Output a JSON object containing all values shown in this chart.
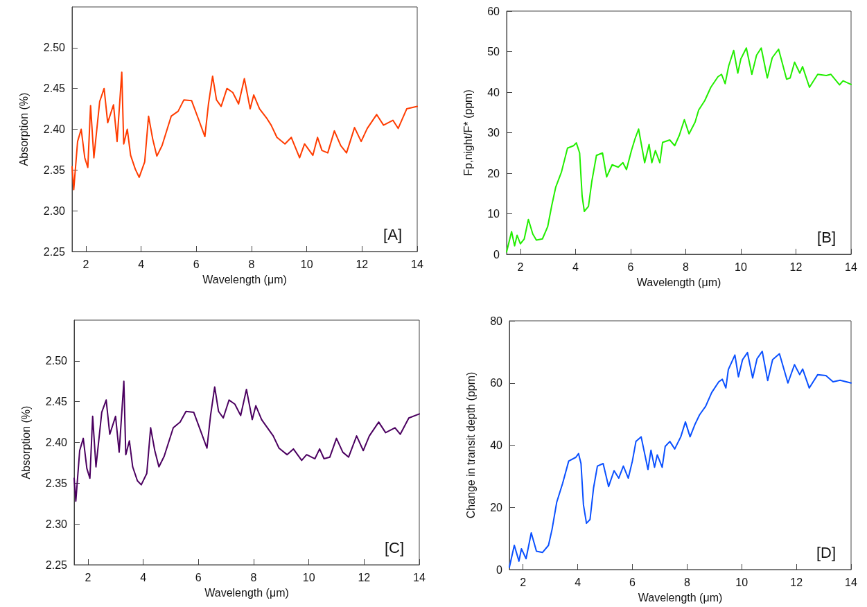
{
  "chart_data": [
    {
      "type": "line",
      "xlabel": "Wavelength (μm)",
      "ylabel": "Absorption (%)",
      "annotations": [
        "[A]"
      ],
      "grid": false,
      "marker": "none",
      "xlim": [
        1.5,
        14
      ],
      "xticks": [
        2,
        4,
        6,
        8,
        10,
        12,
        14
      ],
      "ylim": [
        2.25,
        2.55
      ],
      "yticks": [
        {
          "value": 2.25,
          "label": "2.25"
        },
        {
          "value": 2.3,
          "label": "2.30"
        },
        {
          "value": 2.35,
          "label": "2.35"
        },
        {
          "value": 2.4,
          "label": "2.40"
        },
        {
          "value": 2.45,
          "label": "2.45"
        },
        {
          "value": 2.5,
          "label": "2.50"
        }
      ],
      "x": [
        1.5,
        1.56,
        1.7,
        1.83,
        1.96,
        2.07,
        2.17,
        2.29,
        2.5,
        2.66,
        2.79,
        3.0,
        3.13,
        3.3,
        3.37,
        3.5,
        3.62,
        3.79,
        3.93,
        4.13,
        4.27,
        4.42,
        4.57,
        4.76,
        5.09,
        5.34,
        5.55,
        5.83,
        6.06,
        6.31,
        6.44,
        6.59,
        6.73,
        6.9,
        7.11,
        7.32,
        7.53,
        7.74,
        7.95,
        8.08,
        8.29,
        8.54,
        8.71,
        8.92,
        9.21,
        9.44,
        9.74,
        9.92,
        10.22,
        10.39,
        10.55,
        10.76,
        11.0,
        11.23,
        11.44,
        11.73,
        11.97,
        12.19,
        12.53,
        12.78,
        13.12,
        13.31,
        13.62,
        14.0
      ],
      "series": [
        {
          "color": "#ff3c00",
          "values": [
            2.354,
            2.326,
            2.385,
            2.4,
            2.365,
            2.353,
            2.429,
            2.365,
            2.434,
            2.45,
            2.408,
            2.43,
            2.385,
            2.47,
            2.382,
            2.4,
            2.368,
            2.351,
            2.341,
            2.36,
            2.416,
            2.388,
            2.367,
            2.38,
            2.416,
            2.422,
            2.436,
            2.435,
            2.414,
            2.391,
            2.431,
            2.465,
            2.436,
            2.428,
            2.45,
            2.445,
            2.431,
            2.462,
            2.425,
            2.442,
            2.425,
            2.414,
            2.405,
            2.39,
            2.382,
            2.39,
            2.365,
            2.382,
            2.368,
            2.39,
            2.374,
            2.371,
            2.398,
            2.38,
            2.371,
            2.402,
            2.385,
            2.401,
            2.418,
            2.405,
            2.411,
            2.401,
            2.425,
            2.428
          ]
        }
      ]
    },
    {
      "type": "line",
      "xlabel": "Wavelength (μm)",
      "ylabel": "Fp,night/F* (ppm)",
      "annotations": [
        "[B]"
      ],
      "grid": false,
      "marker": "none",
      "xlim": [
        1.5,
        14
      ],
      "xticks": [
        2,
        4,
        6,
        8,
        10,
        12,
        14
      ],
      "ylim": [
        0,
        60
      ],
      "yticks": [
        0,
        10,
        20,
        30,
        40,
        50,
        60
      ],
      "x": [
        1.5,
        1.68,
        1.79,
        1.88,
        2.0,
        2.14,
        2.29,
        2.45,
        2.58,
        2.8,
        2.99,
        3.14,
        3.28,
        3.49,
        3.71,
        3.93,
        4.03,
        4.15,
        4.24,
        4.32,
        4.47,
        4.59,
        4.76,
        4.98,
        5.13,
        5.33,
        5.55,
        5.72,
        5.85,
        6.03,
        6.16,
        6.29,
        6.51,
        6.67,
        6.77,
        6.9,
        7.06,
        7.16,
        7.42,
        7.6,
        7.77,
        7.95,
        8.12,
        8.34,
        8.47,
        8.69,
        8.91,
        9.17,
        9.3,
        9.43,
        9.56,
        9.74,
        9.89,
        10.0,
        10.2,
        10.4,
        10.57,
        10.74,
        10.96,
        11.14,
        11.37,
        11.66,
        11.79,
        11.95,
        12.14,
        12.24,
        12.49,
        12.79,
        13.1,
        13.27,
        13.58,
        13.71,
        14.0
      ],
      "series": [
        {
          "color": "#22ee00",
          "values": [
            0.6,
            5.6,
            2.1,
            4.7,
            2.6,
            3.8,
            8.6,
            5.0,
            3.5,
            3.8,
            6.8,
            12.1,
            16.5,
            20.3,
            26.2,
            26.8,
            27.5,
            25.0,
            14.4,
            10.6,
            11.8,
            17.9,
            24.4,
            25.0,
            19.1,
            22.1,
            21.5,
            22.6,
            20.9,
            25.6,
            28.5,
            30.9,
            22.6,
            27.1,
            22.6,
            25.6,
            22.6,
            27.6,
            28.2,
            26.8,
            29.4,
            33.2,
            29.7,
            32.6,
            35.6,
            37.9,
            41.2,
            43.8,
            44.4,
            42.1,
            46.5,
            50.3,
            44.7,
            48.2,
            50.9,
            44.4,
            49.1,
            50.9,
            43.5,
            48.5,
            50.6,
            43.2,
            43.5,
            47.4,
            44.7,
            46.3,
            41.2,
            44.4,
            44.1,
            44.4,
            41.8,
            42.8,
            41.9
          ]
        }
      ]
    },
    {
      "type": "line",
      "xlabel": "Wavelength (μm)",
      "ylabel": "Absorption (%)",
      "annotations": [
        "[C]"
      ],
      "grid": false,
      "marker": "none",
      "xlim": [
        1.5,
        14
      ],
      "xticks": [
        2,
        4,
        6,
        8,
        10,
        12,
        14
      ],
      "ylim": [
        2.25,
        2.55
      ],
      "yticks": [
        {
          "value": 2.25,
          "label": "2.25"
        },
        {
          "value": 2.3,
          "label": "2.30"
        },
        {
          "value": 2.35,
          "label": "2.35"
        },
        {
          "value": 2.4,
          "label": "2.40"
        },
        {
          "value": 2.45,
          "label": "2.45"
        },
        {
          "value": 2.5,
          "label": "2.50"
        }
      ],
      "x": [
        1.5,
        1.56,
        1.7,
        1.83,
        1.96,
        2.07,
        2.17,
        2.29,
        2.5,
        2.66,
        2.79,
        3.0,
        3.13,
        3.3,
        3.37,
        3.5,
        3.62,
        3.79,
        3.93,
        4.13,
        4.27,
        4.42,
        4.57,
        4.76,
        5.09,
        5.34,
        5.55,
        5.83,
        6.06,
        6.31,
        6.44,
        6.59,
        6.73,
        6.9,
        7.11,
        7.32,
        7.53,
        7.74,
        7.95,
        8.08,
        8.29,
        8.54,
        8.71,
        8.92,
        9.21,
        9.44,
        9.74,
        9.92,
        10.22,
        10.39,
        10.55,
        10.76,
        11.0,
        11.23,
        11.44,
        11.73,
        11.97,
        12.19,
        12.53,
        12.78,
        13.12,
        13.31,
        13.62,
        14.0
      ],
      "series": [
        {
          "color": "#4b0060",
          "values": [
            2.356,
            2.328,
            2.39,
            2.405,
            2.368,
            2.356,
            2.432,
            2.37,
            2.437,
            2.452,
            2.41,
            2.432,
            2.388,
            2.475,
            2.385,
            2.402,
            2.37,
            2.353,
            2.348,
            2.362,
            2.418,
            2.39,
            2.37,
            2.383,
            2.418,
            2.425,
            2.438,
            2.437,
            2.416,
            2.393,
            2.433,
            2.468,
            2.438,
            2.43,
            2.452,
            2.447,
            2.433,
            2.465,
            2.428,
            2.445,
            2.428,
            2.416,
            2.408,
            2.393,
            2.385,
            2.392,
            2.378,
            2.385,
            2.38,
            2.392,
            2.38,
            2.382,
            2.405,
            2.388,
            2.382,
            2.408,
            2.39,
            2.408,
            2.425,
            2.412,
            2.418,
            2.41,
            2.43,
            2.435
          ]
        }
      ]
    },
    {
      "type": "line",
      "xlabel": "Wavelength (μm)",
      "ylabel": "Change in transit depth (ppm)",
      "annotations": [
        "[D]"
      ],
      "grid": false,
      "marker": "none",
      "xlim": [
        1.5,
        14
      ],
      "xticks": [
        2,
        4,
        6,
        8,
        10,
        12,
        14
      ],
      "ylim": [
        0,
        80
      ],
      "yticks": [
        0,
        20,
        40,
        60,
        80
      ],
      "x": [
        1.5,
        1.68,
        1.85,
        1.94,
        2.11,
        2.3,
        2.49,
        2.71,
        2.93,
        3.06,
        3.23,
        3.45,
        3.67,
        3.93,
        4.03,
        4.12,
        4.21,
        4.32,
        4.45,
        4.58,
        4.72,
        4.93,
        5.13,
        5.33,
        5.5,
        5.67,
        5.85,
        6.0,
        6.13,
        6.32,
        6.57,
        6.68,
        6.81,
        6.91,
        7.09,
        7.2,
        7.37,
        7.55,
        7.77,
        7.94,
        8.11,
        8.29,
        8.46,
        8.68,
        8.9,
        9.16,
        9.29,
        9.42,
        9.51,
        9.75,
        9.88,
        10.03,
        10.21,
        10.4,
        10.56,
        10.75,
        10.95,
        11.13,
        11.38,
        11.69,
        11.93,
        12.12,
        12.23,
        12.47,
        12.78,
        13.08,
        13.34,
        13.6,
        14.0
      ],
      "series": [
        {
          "color": "#0a50ff",
          "values": [
            0.8,
            7.8,
            2.7,
            6.7,
            3.5,
            11.8,
            5.9,
            5.5,
            7.8,
            12.9,
            21.6,
            27.8,
            34.9,
            36.1,
            37.3,
            34.1,
            20.8,
            14.9,
            16.1,
            26.3,
            33.3,
            34.1,
            26.7,
            31.8,
            29.4,
            33.3,
            29.4,
            34.9,
            41.2,
            42.7,
            32.2,
            38.4,
            32.9,
            36.9,
            32.9,
            39.6,
            41.2,
            38.8,
            42.7,
            47.5,
            42.7,
            46.7,
            49.8,
            52.5,
            56.9,
            60.4,
            61.2,
            58.4,
            64.3,
            69.0,
            62.0,
            67.5,
            69.8,
            61.6,
            67.8,
            70.2,
            60.8,
            67.5,
            69.4,
            60.0,
            65.9,
            62.7,
            64.5,
            58.4,
            62.7,
            62.4,
            60.4,
            60.9,
            60.0
          ]
        }
      ]
    }
  ]
}
